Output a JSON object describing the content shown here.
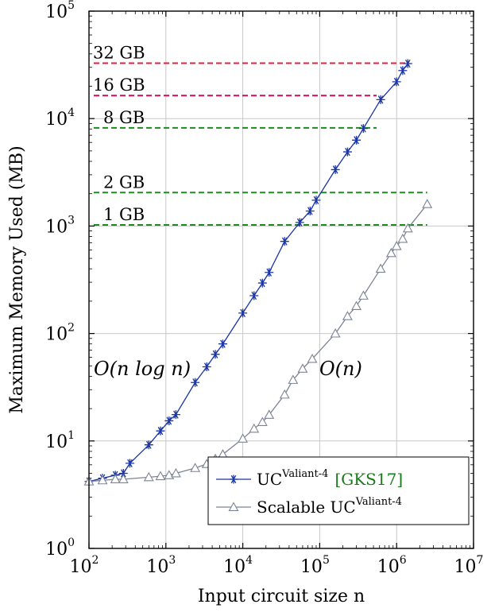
{
  "chart_data": {
    "type": "line",
    "xscale": "log",
    "yscale": "log",
    "xlim": [
      100,
      10000000
    ],
    "ylim": [
      1,
      100000
    ],
    "grid": true,
    "xlabel": "Input circuit size n",
    "ylabel": "Maximum Memory Used (MB)",
    "xticks": [
      {
        "base": "10",
        "exp": "2",
        "value": 100
      },
      {
        "base": "10",
        "exp": "3",
        "value": 1000
      },
      {
        "base": "10",
        "exp": "4",
        "value": 10000
      },
      {
        "base": "10",
        "exp": "5",
        "value": 100000
      },
      {
        "base": "10",
        "exp": "6",
        "value": 1000000
      },
      {
        "base": "10",
        "exp": "7",
        "value": 10000000
      }
    ],
    "yticks": [
      {
        "base": "10",
        "exp": "0",
        "value": 1
      },
      {
        "base": "10",
        "exp": "1",
        "value": 10
      },
      {
        "base": "10",
        "exp": "2",
        "value": 100
      },
      {
        "base": "10",
        "exp": "3",
        "value": 1000
      },
      {
        "base": "10",
        "exp": "4",
        "value": 10000
      },
      {
        "base": "10",
        "exp": "5",
        "value": 100000
      }
    ],
    "reference_lines": [
      {
        "label": "32 GB",
        "y": 32768,
        "x_end": 1400000,
        "color": "#e0203c"
      },
      {
        "label": "16 GB",
        "y": 16384,
        "x_end": 550000,
        "color": "#c8105a"
      },
      {
        "label": "8 GB",
        "y": 8192,
        "x_end": 550000,
        "color": "#1f8a1f"
      },
      {
        "label": "2 GB",
        "y": 2048,
        "x_end": 2500000,
        "color": "#1f8a1f"
      },
      {
        "label": "1 GB",
        "y": 1024,
        "x_end": 2500000,
        "color": "#1f8a1f"
      }
    ],
    "annotations": [
      {
        "text": "O(n log n)",
        "x": 170,
        "y": 45
      },
      {
        "text": "O(n)",
        "x": 100000,
        "y": 45
      }
    ],
    "legend_position": "bottom-right",
    "series": [
      {
        "name": "UC^Valiant-4 [GKS17]",
        "legend_base": "UC",
        "legend_sup": "Valiant-4",
        "legend_cite": "[GKS17]",
        "color": "#1a35a8",
        "marker": "star",
        "x": [
          100,
          150,
          220,
          280,
          340,
          600,
          850,
          1100,
          1350,
          2400,
          3400,
          4400,
          5500,
          10000,
          14000,
          18000,
          22000,
          35000,
          55000,
          75000,
          90000,
          160000,
          230000,
          300000,
          370000,
          620000,
          1000000,
          1200000,
          1400000
        ],
        "y": [
          4.2,
          4.5,
          4.8,
          5.0,
          6.2,
          9.2,
          12.4,
          15.4,
          17.6,
          35,
          49,
          64,
          80,
          155,
          225,
          295,
          370,
          720,
          1080,
          1380,
          1740,
          3350,
          4900,
          6300,
          8100,
          15000,
          22000,
          28000,
          32500
        ]
      },
      {
        "name": "Scalable UC^Valiant-4",
        "legend_base": "Scalable UC",
        "legend_sup": "Valiant-4",
        "color": "#7c8494",
        "marker": "triangle",
        "x": [
          100,
          150,
          220,
          280,
          600,
          850,
          1100,
          1350,
          2400,
          3400,
          4400,
          5500,
          10000,
          14000,
          18000,
          22000,
          35000,
          45000,
          60000,
          80000,
          160000,
          230000,
          300000,
          370000,
          620000,
          850000,
          1000000,
          1200000,
          1400000,
          2500000
        ],
        "y": [
          4.2,
          4.3,
          4.4,
          4.4,
          4.6,
          4.7,
          4.8,
          5.0,
          5.6,
          6.1,
          6.8,
          7.5,
          10.5,
          13,
          15,
          17.5,
          27,
          37,
          47,
          58,
          100,
          145,
          180,
          225,
          400,
          560,
          650,
          760,
          950,
          1600
        ]
      }
    ]
  }
}
